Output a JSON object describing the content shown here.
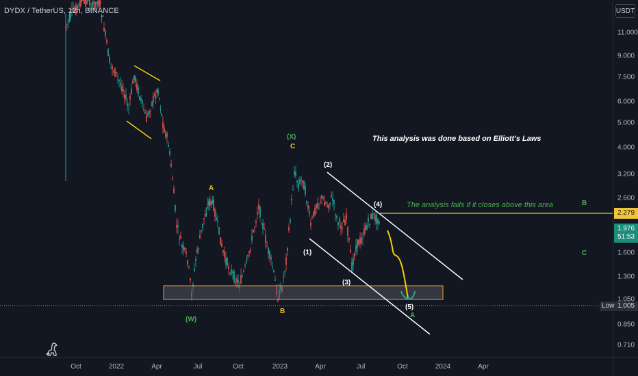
{
  "header": {
    "symbol_title": "DYDX / TetherUS, 12h, BINANCE",
    "currency_button": "USDT"
  },
  "price_axis": {
    "ticks": [
      "11.000",
      "9.000",
      "7.500",
      "6.000",
      "5.000",
      "4.000",
      "3.200",
      "2.600",
      "1.600",
      "1.300",
      "1.050",
      "0.850",
      "0.710"
    ],
    "level_badge": "2.279",
    "last_price": "1.976",
    "countdown": "51:53",
    "low_label": "Low",
    "low_value": "1.005"
  },
  "time_axis": {
    "ticks": [
      "Oct",
      "2022",
      "Apr",
      "Jul",
      "Oct",
      "2023",
      "Apr",
      "Jul",
      "Oct",
      "2024",
      "Apr"
    ]
  },
  "annotations": {
    "title_note": "This analysis was done based on Elliott's Laws",
    "fail_note": "The analysis fails if it closes above this area",
    "wave_labels": [
      {
        "id": "w",
        "text": "(W)"
      },
      {
        "id": "a-yellow",
        "text": "A"
      },
      {
        "id": "b-yellow",
        "text": "B"
      },
      {
        "id": "x",
        "text": "(X)"
      },
      {
        "id": "c-yellow",
        "text": "C"
      },
      {
        "id": "w1",
        "text": "(1)"
      },
      {
        "id": "w2",
        "text": "(2)"
      },
      {
        "id": "w3",
        "text": "(3)"
      },
      {
        "id": "w4",
        "text": "(4)"
      },
      {
        "id": "w5",
        "text": "(5)"
      },
      {
        "id": "a-green",
        "text": "A"
      },
      {
        "id": "b-green",
        "text": "B"
      },
      {
        "id": "c-green",
        "text": "C"
      }
    ]
  },
  "colors": {
    "background": "#131722",
    "up_candle": "#26a69a",
    "down_candle": "#ef5350",
    "trendline": "#ffffff",
    "projection": "#f5d000",
    "level_line": "#f0c53a",
    "support_zone": "#5d606b",
    "support_zone_border": "#f7a21b",
    "wave_green": "#4caf50",
    "wave_yellow": "#f5c518"
  }
}
